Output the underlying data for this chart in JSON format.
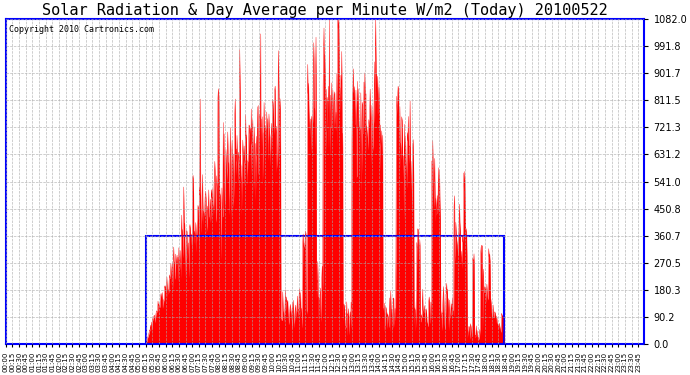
{
  "title": "Solar Radiation & Day Average per Minute W/m2 (Today) 20100522",
  "copyright": "Copyright 2010 Cartronics.com",
  "ymax": 1082.0,
  "ymin": 0.0,
  "yticks": [
    0.0,
    90.2,
    180.3,
    270.5,
    360.7,
    450.8,
    541.0,
    631.2,
    721.3,
    811.5,
    901.7,
    991.8,
    1082.0
  ],
  "ytick_labels": [
    "0.0",
    "90.2",
    "180.3",
    "270.5",
    "360.7",
    "450.8",
    "541.0",
    "631.2",
    "721.3",
    "811.5",
    "901.7",
    "991.8",
    "1082.0"
  ],
  "background_color": "#ffffff",
  "fill_color": "#ff0000",
  "average_color": "#0000ff",
  "border_color": "#0000ff",
  "title_fontsize": 11,
  "copyright_fontsize": 6,
  "average_value": 360.7,
  "sunrise_minute": 316,
  "sunset_minute": 1123,
  "total_minutes": 1440,
  "grid_color": "#aaaaaa",
  "tick_interval_minutes": 15
}
